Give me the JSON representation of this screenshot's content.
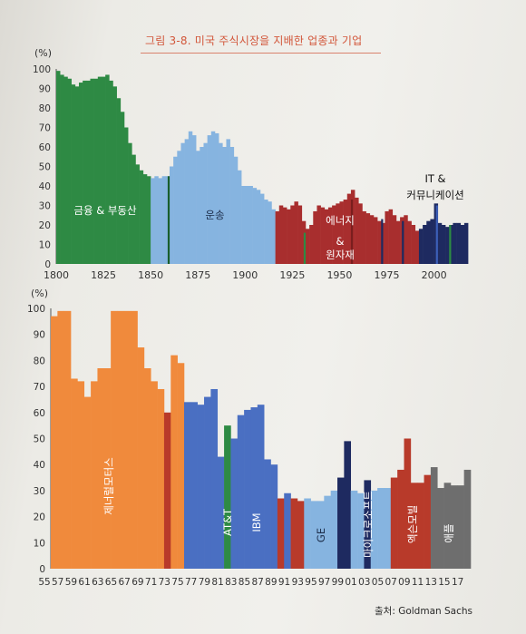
{
  "title": "그림 3-8. 미국 주식시장을 지배한 업종과 기업",
  "source": "출처: Goldman Sachs",
  "chart_data": [
    {
      "type": "bar",
      "ylabel": "(%)",
      "ylim": [
        0,
        100
      ],
      "y_ticks": [
        "0",
        "10",
        "20",
        "30",
        "40",
        "50",
        "60",
        "70",
        "80",
        "90",
        "100"
      ],
      "x_ticks": [
        "1800",
        "1825",
        "1850",
        "1875",
        "1900",
        "1925",
        "1950",
        "1975",
        "2000"
      ],
      "xlim": [
        1800,
        2017
      ],
      "grid": false,
      "series": [
        {
          "name": "금융 & 부동산",
          "color": "#2e8a44",
          "x": [
            1800,
            1802,
            1804,
            1806,
            1808,
            1810,
            1812,
            1814,
            1816,
            1818,
            1820,
            1822,
            1824,
            1826,
            1828,
            1830,
            1832,
            1834,
            1836,
            1838,
            1840,
            1842,
            1844,
            1846,
            1848
          ],
          "values": [
            99,
            97,
            96,
            95,
            92,
            91,
            93,
            94,
            94,
            95,
            95,
            96,
            96,
            97,
            94,
            91,
            85,
            78,
            70,
            62,
            56,
            51,
            48,
            46,
            45
          ]
        },
        {
          "name": "운송",
          "color": "#86b4e0",
          "x": [
            1850,
            1852,
            1854,
            1856,
            1858,
            1860,
            1862,
            1864,
            1866,
            1868,
            1870,
            1872,
            1874,
            1876,
            1878,
            1880,
            1882,
            1884,
            1886,
            1888,
            1890,
            1892,
            1894,
            1896,
            1898,
            1900,
            1902,
            1904,
            1906,
            1908,
            1910,
            1912,
            1914
          ],
          "values": [
            44,
            45,
            44,
            45,
            45,
            50,
            55,
            58,
            62,
            64,
            68,
            66,
            58,
            60,
            62,
            66,
            68,
            67,
            62,
            60,
            64,
            60,
            55,
            48,
            40,
            40,
            40,
            39,
            38,
            36,
            33,
            32,
            28
          ]
        },
        {
          "name": "에너지 & 원자재",
          "color": "#a82e2e",
          "x": [
            1916,
            1918,
            1920,
            1922,
            1924,
            1926,
            1928,
            1930,
            1932,
            1934,
            1936,
            1938,
            1940,
            1942,
            1944,
            1946,
            1948,
            1950,
            1952,
            1954,
            1956,
            1958,
            1960,
            1962,
            1964,
            1966,
            1968,
            1970,
            1972,
            1974,
            1976,
            1978,
            1980,
            1982,
            1984,
            1986,
            1988,
            1990
          ],
          "values": [
            27,
            30,
            29,
            28,
            30,
            32,
            30,
            22,
            18,
            20,
            27,
            30,
            29,
            28,
            29,
            30,
            31,
            32,
            33,
            36,
            38,
            34,
            31,
            27,
            26,
            25,
            24,
            22,
            21,
            27,
            28,
            25,
            22,
            24,
            25,
            22,
            20,
            17
          ]
        },
        {
          "name": "IT & 커뮤니케이션",
          "color": "#1e2a60",
          "x": [
            1992,
            1994,
            1996,
            1998,
            2000,
            2002,
            2004,
            2006,
            2008,
            2010,
            2012,
            2014,
            2016
          ],
          "values": [
            18,
            20,
            22,
            23,
            31,
            21,
            20,
            19,
            20,
            21,
            21,
            20,
            21
          ]
        }
      ]
    },
    {
      "type": "bar",
      "ylabel": "(%)",
      "ylim": [
        0,
        100
      ],
      "y_ticks": [
        "0",
        "10",
        "20",
        "30",
        "40",
        "50",
        "60",
        "70",
        "80",
        "90",
        "100"
      ],
      "x_ticks": [
        "55",
        "57",
        "59",
        "61",
        "63",
        "65",
        "67",
        "69",
        "71",
        "73",
        "75",
        "77",
        "79",
        "81",
        "83",
        "85",
        "87",
        "89",
        "91",
        "93",
        "95",
        "97",
        "99",
        "01",
        "03",
        "05",
        "07",
        "09",
        "11",
        "13",
        "15",
        "17"
      ],
      "grid": false,
      "labels": [
        "제너럴모터스",
        "AT&T",
        "IBM",
        "GE",
        "마이크로소프트",
        "엑슨모빌",
        "애플"
      ],
      "bars": [
        {
          "x": "55",
          "value": 97,
          "company": "제너럴모터스",
          "color": "#f08a3c"
        },
        {
          "x": "56",
          "value": 99,
          "company": "제너럴모터스",
          "color": "#f08a3c"
        },
        {
          "x": "57",
          "value": 99,
          "company": "제너럴모터스",
          "color": "#f08a3c"
        },
        {
          "x": "58",
          "value": 73,
          "company": "제너럴모터스",
          "color": "#f08a3c"
        },
        {
          "x": "59",
          "value": 72,
          "company": "제너럴모터스",
          "color": "#f08a3c"
        },
        {
          "x": "60",
          "value": 66,
          "company": "제너럴모터스",
          "color": "#f08a3c"
        },
        {
          "x": "61",
          "value": 72,
          "company": "제너럴모터스",
          "color": "#f08a3c"
        },
        {
          "x": "62",
          "value": 77,
          "company": "제너럴모터스",
          "color": "#f08a3c"
        },
        {
          "x": "63",
          "value": 77,
          "company": "제너럴모터스",
          "color": "#f08a3c"
        },
        {
          "x": "64",
          "value": 99,
          "company": "제너럴모터스",
          "color": "#f08a3c"
        },
        {
          "x": "65",
          "value": 99,
          "company": "제너럴모터스",
          "color": "#f08a3c"
        },
        {
          "x": "66",
          "value": 99,
          "company": "제너럴모터스",
          "color": "#f08a3c"
        },
        {
          "x": "67",
          "value": 99,
          "company": "제너럴모터스",
          "color": "#f08a3c"
        },
        {
          "x": "68",
          "value": 85,
          "company": "제너럴모터스",
          "color": "#f08a3c"
        },
        {
          "x": "69",
          "value": 77,
          "company": "제너럴모터스",
          "color": "#f08a3c"
        },
        {
          "x": "70",
          "value": 72,
          "company": "제너럴모터스",
          "color": "#f08a3c"
        },
        {
          "x": "71",
          "value": 69,
          "company": "제너럴모터스",
          "color": "#f08a3c"
        },
        {
          "x": "72",
          "value": 60,
          "company": "",
          "color": "#b83a2a"
        },
        {
          "x": "73",
          "value": 82,
          "company": "제너럴모터스",
          "color": "#f08a3c"
        },
        {
          "x": "74",
          "value": 79,
          "company": "제너럴모터스",
          "color": "#f08a3c"
        },
        {
          "x": "75",
          "value": 64,
          "company": "AT&T",
          "color": "#4a6fc2"
        },
        {
          "x": "76",
          "value": 64,
          "company": "AT&T",
          "color": "#4a6fc2"
        },
        {
          "x": "77",
          "value": 63,
          "company": "AT&T",
          "color": "#4a6fc2"
        },
        {
          "x": "78",
          "value": 66,
          "company": "AT&T",
          "color": "#4a6fc2"
        },
        {
          "x": "79",
          "value": 69,
          "company": "AT&T",
          "color": "#4a6fc2"
        },
        {
          "x": "80",
          "value": 43,
          "company": "AT&T",
          "color": "#4a6fc2"
        },
        {
          "x": "81",
          "value": 55,
          "company": "AT&T",
          "color": "#2e8a44"
        },
        {
          "x": "82",
          "value": 50,
          "company": "IBM",
          "color": "#4a6fc2"
        },
        {
          "x": "83",
          "value": 59,
          "company": "IBM",
          "color": "#4a6fc2"
        },
        {
          "x": "84",
          "value": 61,
          "company": "IBM",
          "color": "#4a6fc2"
        },
        {
          "x": "85",
          "value": 62,
          "company": "IBM",
          "color": "#4a6fc2"
        },
        {
          "x": "86",
          "value": 63,
          "company": "IBM",
          "color": "#4a6fc2"
        },
        {
          "x": "87",
          "value": 42,
          "company": "IBM",
          "color": "#4a6fc2"
        },
        {
          "x": "88",
          "value": 40,
          "company": "IBM",
          "color": "#4a6fc2"
        },
        {
          "x": "89",
          "value": 27,
          "company": "",
          "color": "#b83a2a"
        },
        {
          "x": "90",
          "value": 29,
          "company": "IBM",
          "color": "#4a6fc2"
        },
        {
          "x": "91",
          "value": 27,
          "company": "",
          "color": "#b83a2a"
        },
        {
          "x": "92",
          "value": 26,
          "company": "",
          "color": "#b83a2a"
        },
        {
          "x": "93",
          "value": 27,
          "company": "GE",
          "color": "#86b4e0"
        },
        {
          "x": "94",
          "value": 26,
          "company": "GE",
          "color": "#86b4e0"
        },
        {
          "x": "95",
          "value": 26,
          "company": "GE",
          "color": "#86b4e0"
        },
        {
          "x": "96",
          "value": 28,
          "company": "GE",
          "color": "#86b4e0"
        },
        {
          "x": "97",
          "value": 30,
          "company": "GE",
          "color": "#86b4e0"
        },
        {
          "x": "98",
          "value": 35,
          "company": "마이크로소프트",
          "color": "#1e2a60"
        },
        {
          "x": "99",
          "value": 49,
          "company": "마이크로소프트",
          "color": "#1e2a60"
        },
        {
          "x": "00",
          "value": 30,
          "company": "GE",
          "color": "#86b4e0"
        },
        {
          "x": "01",
          "value": 29,
          "company": "GE",
          "color": "#86b4e0"
        },
        {
          "x": "02",
          "value": 34,
          "company": "마이크로소프트",
          "color": "#1e2a60"
        },
        {
          "x": "03",
          "value": 30,
          "company": "GE",
          "color": "#86b4e0"
        },
        {
          "x": "04",
          "value": 31,
          "company": "GE",
          "color": "#86b4e0"
        },
        {
          "x": "05",
          "value": 31,
          "company": "GE",
          "color": "#86b4e0"
        },
        {
          "x": "06",
          "value": 35,
          "company": "엑슨모빌",
          "color": "#b83a2a"
        },
        {
          "x": "07",
          "value": 38,
          "company": "엑슨모빌",
          "color": "#b83a2a"
        },
        {
          "x": "08",
          "value": 50,
          "company": "엑슨모빌",
          "color": "#b83a2a"
        },
        {
          "x": "09",
          "value": 33,
          "company": "엑슨모빌",
          "color": "#b83a2a"
        },
        {
          "x": "10",
          "value": 33,
          "company": "엑슨모빌",
          "color": "#b83a2a"
        },
        {
          "x": "11",
          "value": 36,
          "company": "엑슨모빌",
          "color": "#b83a2a"
        },
        {
          "x": "12",
          "value": 39,
          "company": "애플",
          "color": "#6e6e6e"
        },
        {
          "x": "13",
          "value": 31,
          "company": "애플",
          "color": "#6e6e6e"
        },
        {
          "x": "14",
          "value": 33,
          "company": "애플",
          "color": "#6e6e6e"
        },
        {
          "x": "15",
          "value": 32,
          "company": "애플",
          "color": "#6e6e6e"
        },
        {
          "x": "16",
          "value": 32,
          "company": "애플",
          "color": "#6e6e6e"
        },
        {
          "x": "17",
          "value": 38,
          "company": "애플",
          "color": "#6e6e6e"
        }
      ]
    }
  ]
}
